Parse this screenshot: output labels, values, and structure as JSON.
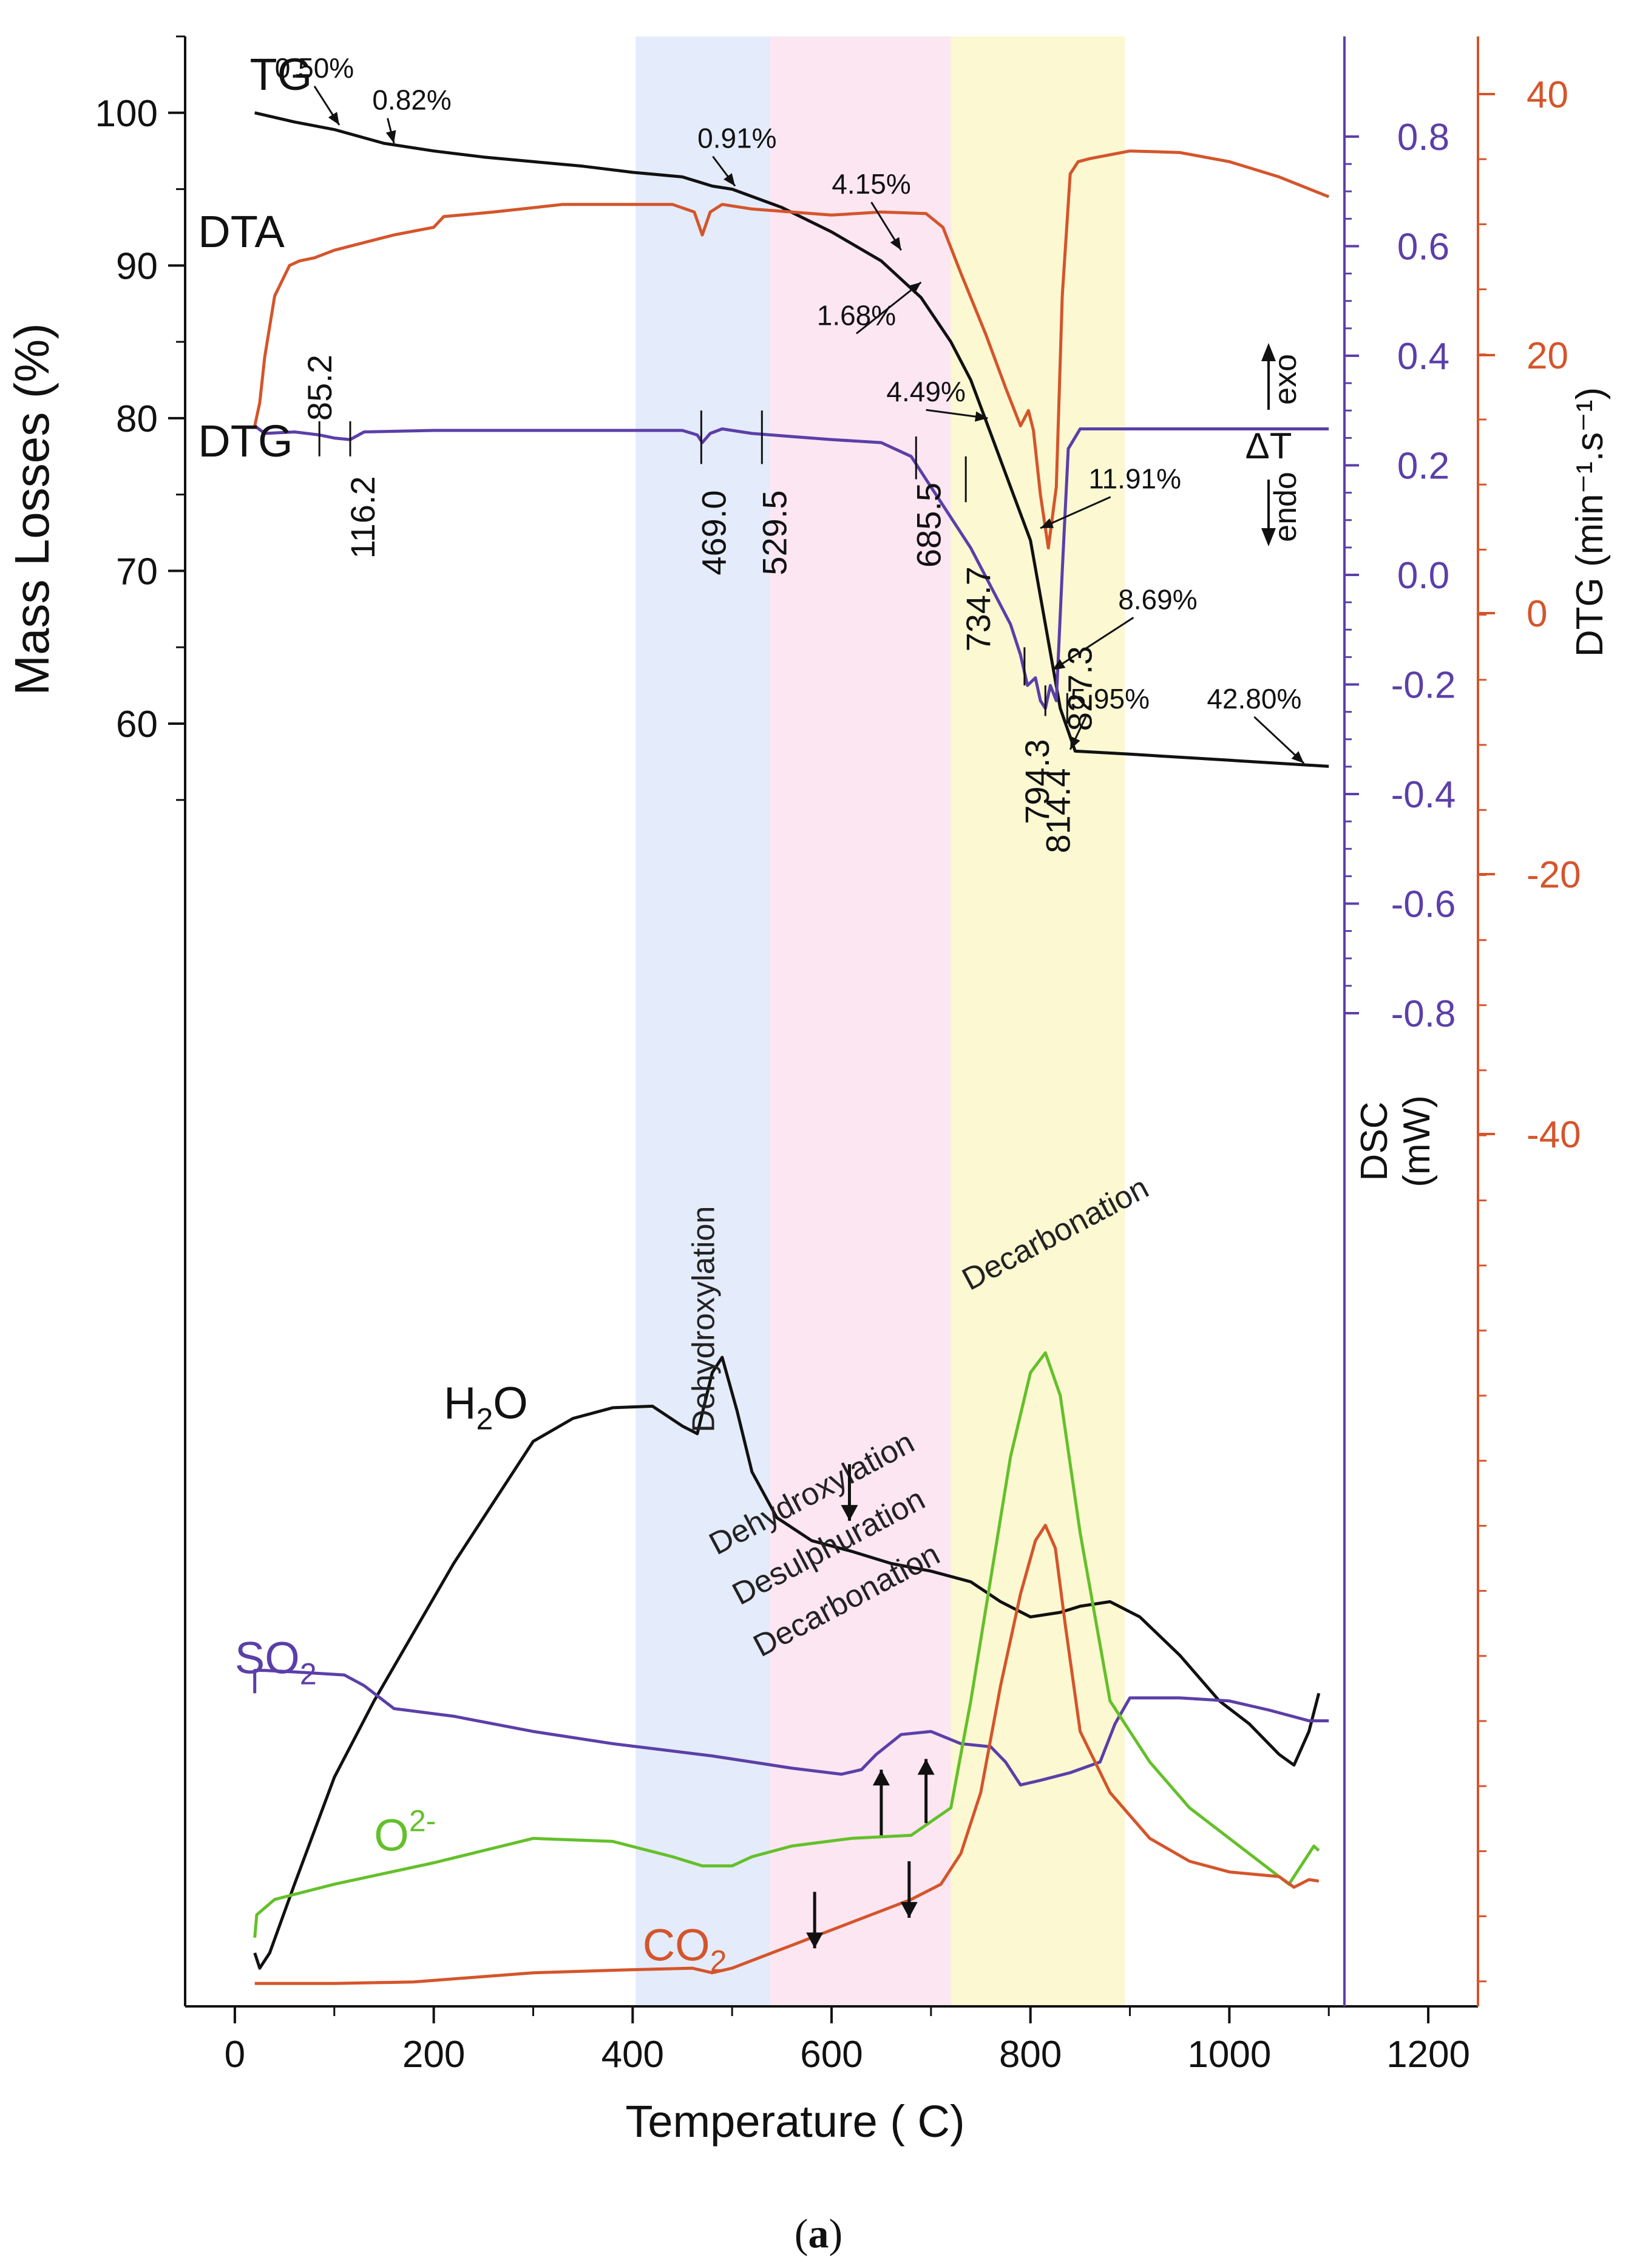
{
  "caption": {
    "open": "(",
    "letter": "a",
    "close": ")"
  },
  "chart_data": {
    "type": "line",
    "xlabel": "Temperature ( C)",
    "xlim": [
      -50,
      1250
    ],
    "xticks": [
      0,
      200,
      400,
      600,
      800,
      1000,
      1200
    ],
    "y_axes": {
      "left": {
        "label": "Mass Losses (%)",
        "lim": [
          -24,
          105
        ],
        "ticks": [
          60,
          70,
          80,
          90,
          100
        ],
        "color": "#111111"
      },
      "dsc": {
        "label_line1": "DSC",
        "label_line2": "(mW)",
        "lim": [
          -0.9,
          1.0
        ],
        "ticks": [
          "0.8",
          "0.6",
          "0.4",
          "0.2",
          "0.0",
          "-0.2",
          "-0.4",
          "-0.6",
          "-0.8"
        ],
        "color": "#5b3fa8"
      },
      "dtg": {
        "label": "DTG (min⁻¹.s⁻¹)",
        "lim": [
          -104,
          45
        ],
        "ticks": [
          40,
          20,
          0,
          -20,
          -40
        ],
        "color": "#d4552b"
      }
    },
    "bands": [
      {
        "from": 403,
        "to": 538,
        "color": "#e4ebfa"
      },
      {
        "from": 538,
        "to": 720,
        "color": "#fce6f2"
      },
      {
        "from": 720,
        "to": 895,
        "color": "#fbf8d2"
      }
    ],
    "band_labels": [
      {
        "text": "Dehydroxylation",
        "x": 482,
        "y": 21,
        "rotate": -90
      },
      {
        "text": "Dehydroxylation",
        "x": 585,
        "y": 9,
        "rotate": -28
      },
      {
        "text": "Desulphuration",
        "x": 602,
        "y": 5.5,
        "rotate": -28
      },
      {
        "text": "Decarbonation",
        "x": 620,
        "y": 2,
        "rotate": -28
      },
      {
        "text": "Decarbonation",
        "x": 830,
        "y": 26,
        "rotate": -28
      }
    ],
    "series": [
      {
        "name": "TG",
        "color": "#111111",
        "axis": "left",
        "x": [
          20,
          60,
          100,
          150,
          200,
          250,
          300,
          350,
          400,
          450,
          480,
          500,
          550,
          600,
          650,
          690,
          720,
          740,
          760,
          780,
          800,
          815,
          830,
          845,
          900,
          1000,
          1100
        ],
        "y": [
          100,
          99.4,
          98.9,
          98.0,
          97.5,
          97.1,
          96.8,
          96.5,
          96.1,
          95.8,
          95.2,
          95.0,
          93.8,
          92.2,
          90.3,
          87.9,
          85.0,
          82.5,
          79.0,
          75.5,
          72.0,
          66.5,
          61.0,
          58.2,
          58.0,
          57.6,
          57.2
        ]
      },
      {
        "name": "DTA",
        "color": "#d4552b",
        "axis": "left",
        "x": [
          20,
          25,
          30,
          40,
          55,
          65,
          80,
          100,
          130,
          160,
          200,
          210,
          260,
          330,
          400,
          440,
          462,
          470,
          478,
          490,
          520,
          600,
          650,
          695,
          712,
          730,
          755,
          775,
          790,
          798,
          803,
          810,
          818,
          826,
          832,
          840,
          848,
          860,
          900,
          950,
          1000,
          1050,
          1100
        ],
        "y": [
          79.5,
          81,
          84,
          88,
          90,
          90.3,
          90.5,
          91,
          91.5,
          92,
          92.5,
          93.2,
          93.5,
          94,
          94,
          94,
          93.5,
          92,
          93.5,
          94,
          93.7,
          93.3,
          93.5,
          93.4,
          92.5,
          89.5,
          85.5,
          82,
          79.5,
          80.5,
          79.2,
          75,
          71.5,
          75.5,
          88,
          96,
          96.8,
          97,
          97.5,
          97.4,
          96.8,
          95.8,
          94.5
        ]
      },
      {
        "name": "DTG",
        "color": "#5b3fa8",
        "axis": "left",
        "x": [
          20,
          30,
          60,
          85,
          100,
          116,
          130,
          200,
          300,
          400,
          450,
          465,
          470,
          478,
          490,
          520,
          560,
          600,
          650,
          680,
          700,
          720,
          740,
          760,
          780,
          790,
          797,
          805,
          810,
          815,
          820,
          826,
          832,
          838,
          850,
          900,
          1000,
          1100
        ],
        "y": [
          79.5,
          79.0,
          79.1,
          78.9,
          78.7,
          78.6,
          79.1,
          79.2,
          79.2,
          79.2,
          79.2,
          78.9,
          78.4,
          79.0,
          79.3,
          79.0,
          78.8,
          78.6,
          78.4,
          77.5,
          75.5,
          73.5,
          71.5,
          69.0,
          66.5,
          64.5,
          62.5,
          63.0,
          61.5,
          61.0,
          62.5,
          61.5,
          70.0,
          78.0,
          79.3,
          79.3,
          79.3,
          79.3
        ]
      },
      {
        "name": "H2O",
        "color": "#111111",
        "axis": "left",
        "x": [
          20,
          25,
          35,
          60,
          100,
          140,
          180,
          220,
          260,
          300,
          340,
          380,
          420,
          450,
          465,
          480,
          490,
          505,
          520,
          545,
          580,
          620,
          660,
          700,
          740,
          770,
          800,
          830,
          850,
          880,
          910,
          950,
          990,
          1020,
          1050,
          1065,
          1080,
          1090
        ],
        "y": [
          -20.5,
          -21.5,
          -20.5,
          -16,
          -9,
          -4,
          0.5,
          5,
          9,
          13,
          14.5,
          15.2,
          15.3,
          14.0,
          13.5,
          17.5,
          18.5,
          15,
          11,
          8,
          6.5,
          5.8,
          5,
          4.5,
          3.8,
          2.5,
          1.5,
          1.8,
          2.2,
          2.5,
          1.5,
          -1,
          -4,
          -5.5,
          -7.5,
          -8.2,
          -6,
          -3.5
        ]
      },
      {
        "name": "SO2",
        "color": "#5b3fa8",
        "axis": "left",
        "x": [
          20,
          20,
          30,
          60,
          110,
          130,
          160,
          220,
          300,
          380,
          430,
          480,
          520,
          560,
          610,
          630,
          645,
          670,
          700,
          730,
          760,
          775,
          790,
          810,
          840,
          870,
          885,
          900,
          950,
          1000,
          1040,
          1080,
          1100
        ],
        "y": [
          -3.5,
          -2,
          -2,
          -2.1,
          -2.3,
          -3,
          -4.5,
          -5,
          -6,
          -6.8,
          -7.2,
          -7.6,
          -8,
          -8.4,
          -8.8,
          -8.5,
          -7.5,
          -6.2,
          -6,
          -6.8,
          -7,
          -8,
          -9.5,
          -9.2,
          -8.7,
          -8,
          -5.5,
          -3.8,
          -3.8,
          -4,
          -4.6,
          -5.3,
          -5.3
        ]
      },
      {
        "name": "O2-",
        "color": "#64c02a",
        "axis": "left",
        "x": [
          20,
          22,
          40,
          100,
          200,
          300,
          380,
          440,
          470,
          500,
          520,
          560,
          620,
          680,
          720,
          740,
          760,
          780,
          800,
          815,
          830,
          850,
          880,
          920,
          960,
          1000,
          1040,
          1060,
          1075,
          1085,
          1090
        ],
        "y": [
          -19.5,
          -18,
          -17,
          -16,
          -14.6,
          -13,
          -13.2,
          -14.2,
          -14.8,
          -14.8,
          -14.2,
          -13.5,
          -13.0,
          -12.8,
          -11,
          -4,
          4,
          12,
          17.5,
          18.8,
          16,
          7,
          -4,
          -8,
          -11,
          -13,
          -15,
          -16,
          -14.5,
          -13.5,
          -13.8
        ]
      },
      {
        "name": "CO2",
        "color": "#d4552b",
        "axis": "left",
        "x": [
          20,
          100,
          180,
          200,
          300,
          400,
          460,
          480,
          500,
          520,
          560,
          600,
          640,
          680,
          710,
          730,
          750,
          770,
          790,
          805,
          815,
          825,
          835,
          850,
          880,
          920,
          960,
          1000,
          1050,
          1065,
          1080,
          1090
        ],
        "y": [
          -22.5,
          -22.5,
          -22.4,
          -22.3,
          -21.8,
          -21.6,
          -21.5,
          -21.8,
          -21.5,
          -21,
          -20,
          -19,
          -18,
          -17,
          -16,
          -14,
          -10,
          -3,
          3,
          6.5,
          7.5,
          6,
          1,
          -6,
          -10,
          -13,
          -14.5,
          -15.2,
          -15.5,
          -16.2,
          -15.7,
          -15.8
        ]
      }
    ],
    "curve_labels": [
      {
        "key": "TG",
        "text": "TG",
        "x": 15,
        "y": 101.5,
        "color": "#111111"
      },
      {
        "key": "DTA",
        "text": "DTA",
        "x": -37,
        "y": 91.2,
        "color": "#111111"
      },
      {
        "key": "DTG",
        "text": "DTG",
        "x": -37,
        "y": 77.5,
        "color": "#111111"
      },
      {
        "key": "H2O",
        "text": "H",
        "sub": "2",
        "tail": "O",
        "x": 210,
        "y": 14.5,
        "color": "#111111"
      },
      {
        "key": "SO2",
        "text": "SO",
        "sub": "2",
        "tail": "",
        "x": 0,
        "y": -2.2,
        "color": "#5b3fa8"
      },
      {
        "key": "O2-",
        "text": "O",
        "sup": "2-",
        "x": 140,
        "y": -13.8,
        "color": "#64c02a"
      },
      {
        "key": "CO2",
        "text": "CO",
        "sub": "2",
        "tail": "",
        "x": 410,
        "y": -21,
        "color": "#d4552b"
      }
    ],
    "temperature_marks": [
      {
        "label": "85.2",
        "x": 85,
        "y": 82,
        "tickTop": 79.8,
        "tickBot": 77.5,
        "side": "up"
      },
      {
        "label": "116.2",
        "x": 116,
        "y": 73.5,
        "tickTop": 79.8,
        "tickBot": 77.5,
        "side": "down"
      },
      {
        "label": "469.0",
        "x": 469,
        "y": 72.5,
        "tickTop": 80.5,
        "tickBot": 77.0,
        "side": "down"
      },
      {
        "label": "529.5",
        "x": 530,
        "y": 72.5,
        "tickTop": 80.5,
        "tickBot": 77.0,
        "side": "down"
      },
      {
        "label": "685.5",
        "x": 685,
        "y": 73.0,
        "tickTop": 78.8,
        "tickBot": 76.0,
        "side": "down"
      },
      {
        "label": "734.7",
        "x": 735,
        "y": 67.5,
        "tickTop": 77.5,
        "tickBot": 74.5,
        "side": "down"
      },
      {
        "label": "794.3",
        "x": 794,
        "y": 56.2,
        "tickTop": 65.0,
        "tickBot": 62.5,
        "side": "down"
      },
      {
        "label": "814.4",
        "x": 815,
        "y": 54.3,
        "tickTop": 62.5,
        "tickBot": 60.5,
        "side": "down"
      },
      {
        "label": "827.3",
        "x": 837,
        "y": 62.3,
        "tickTop": 62.0,
        "tickBot": 60.0,
        "side": "down"
      }
    ],
    "mass_loss_annotations": [
      {
        "label": "0.50%",
        "tx": 80,
        "ty": 102.3,
        "ax": 105,
        "ay": 99.2
      },
      {
        "label": "0.82%",
        "tx": 178,
        "ty": 100.2,
        "ax": 160,
        "ay": 98.0
      },
      {
        "label": "0.91%",
        "tx": 505,
        "ty": 97.7,
        "ax": 503,
        "ay": 95.2
      },
      {
        "label": "4.15%",
        "tx": 640,
        "ty": 94.7,
        "ax": 670,
        "ay": 91.0
      },
      {
        "label": "1.68%",
        "tx": 625,
        "ty": 86.1,
        "ax": 690,
        "ay": 88.9
      },
      {
        "label": "4.49%",
        "tx": 695,
        "ty": 81.1,
        "ax": 757,
        "ay": 80.0
      },
      {
        "label": "11.91%",
        "tx": 905,
        "ty": 75.4,
        "ax": 810,
        "ay": 72.8
      },
      {
        "label": "8.69%",
        "tx": 928,
        "ty": 67.5,
        "ax": 822,
        "ay": 63.5
      },
      {
        "label": "5.95%",
        "tx": 880,
        "ty": 61.0,
        "ax": 840,
        "ay": 58.3
      },
      {
        "label": "42.80%",
        "tx": 1025,
        "ty": 61.0,
        "ax": 1075,
        "ay": 57.4
      }
    ],
    "event_arrows": [
      {
        "x": 618,
        "from": 11.5,
        "to": 7.8,
        "dir": "down"
      },
      {
        "x": 650,
        "from": -12.8,
        "to": -8.5,
        "dir": "up"
      },
      {
        "x": 695,
        "from": -12.0,
        "to": -7.8,
        "dir": "up"
      },
      {
        "x": 583,
        "from": -16.5,
        "to": -20.2,
        "dir": "down"
      },
      {
        "x": 678,
        "from": -14.5,
        "to": -18.2,
        "dir": "down"
      }
    ],
    "dta_legend": {
      "top": "exo",
      "mid": "ΔT",
      "bottom": "endo"
    },
    "legend": "none",
    "grid": false
  }
}
